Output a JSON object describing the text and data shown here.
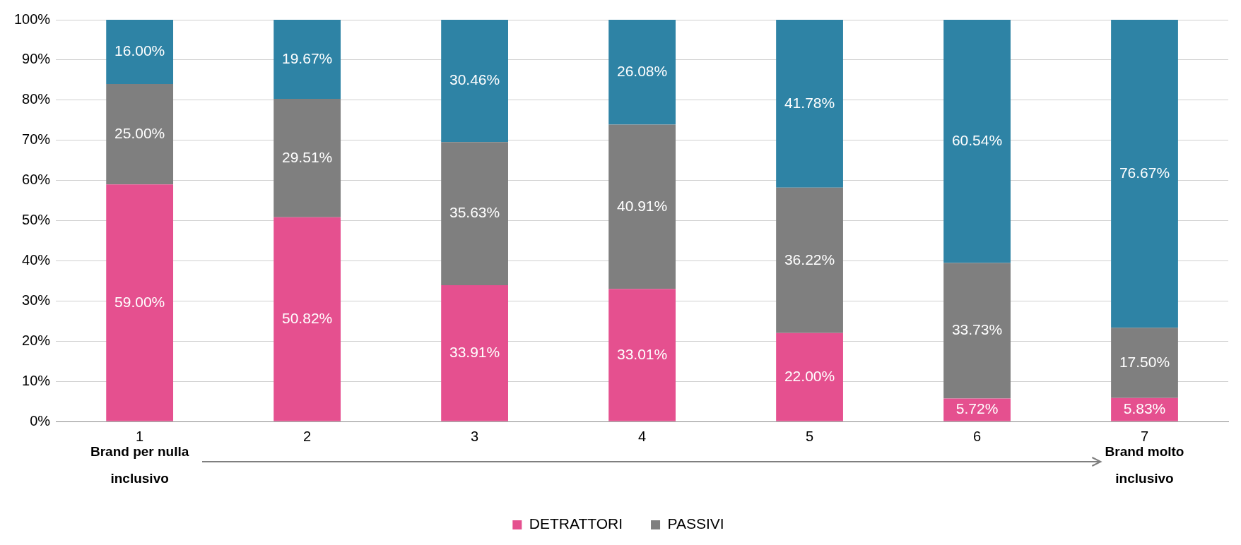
{
  "chart_data": {
    "type": "bar",
    "stacked": true,
    "categories": [
      "1",
      "2",
      "3",
      "4",
      "5",
      "6",
      "7"
    ],
    "series": [
      {
        "name": "DETRATTORI",
        "color": "#e5508f",
        "values": [
          59.0,
          50.82,
          33.91,
          33.01,
          22.0,
          5.72,
          5.83
        ],
        "value_labels": [
          "59.00%",
          "50.82%",
          "33.91%",
          "33.01%",
          "22.00%",
          "5.72%",
          "5.83%"
        ]
      },
      {
        "name": "PASSIVI",
        "color": "#7f7f7f",
        "values": [
          25.0,
          29.51,
          35.63,
          40.91,
          36.22,
          33.73,
          17.5
        ],
        "value_labels": [
          "25.00%",
          "29.51%",
          "35.63%",
          "40.91%",
          "36.22%",
          "33.73%",
          "17.50%"
        ]
      },
      {
        "color": "#2e83a5",
        "values": [
          16.0,
          19.67,
          30.46,
          26.08,
          41.78,
          60.54,
          76.67
        ],
        "value_labels": [
          "16.00%",
          "19.67%",
          "30.46%",
          "26.08%",
          "41.78%",
          "60.54%",
          "76.67%"
        ]
      }
    ],
    "ylim": [
      0,
      100
    ],
    "yticks": [
      {
        "value": 0,
        "label": "0%"
      },
      {
        "value": 10,
        "label": "10%"
      },
      {
        "value": 20,
        "label": "20%"
      },
      {
        "value": 30,
        "label": "30%"
      },
      {
        "value": 40,
        "label": "40%"
      },
      {
        "value": 50,
        "label": "50%"
      },
      {
        "value": 60,
        "label": "60%"
      },
      {
        "value": 70,
        "label": "70%"
      },
      {
        "value": 80,
        "label": "80%"
      },
      {
        "value": 90,
        "label": "90%"
      },
      {
        "value": 100,
        "label": "100%"
      }
    ],
    "grid": "y",
    "legend": "bottom",
    "annotations": [
      "Brand per nulla\ninclusivo",
      "Brand molto\ninclusivo"
    ]
  }
}
